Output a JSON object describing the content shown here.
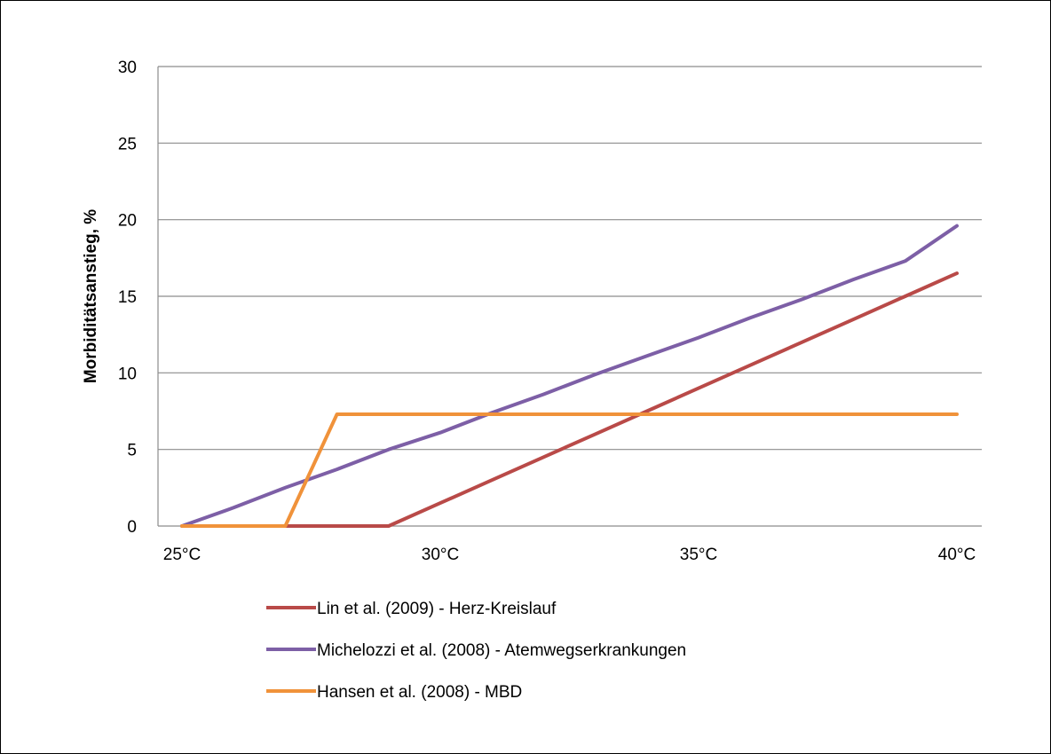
{
  "chart_data": {
    "type": "line",
    "title": "",
    "xlabel": "",
    "ylabel": "Morbiditätsanstieg, %",
    "x": [
      25,
      26,
      27,
      28,
      29,
      30,
      31,
      32,
      33,
      34,
      35,
      36,
      37,
      38,
      39,
      40
    ],
    "x_tick_values": [
      25,
      30,
      35,
      40
    ],
    "x_tick_labels": [
      "25°C",
      "30°C",
      "35°C",
      "40°C"
    ],
    "xlim": [
      25,
      40
    ],
    "ylim": [
      0,
      30
    ],
    "y_ticks": [
      0,
      5,
      10,
      15,
      20,
      25,
      30
    ],
    "y_tick_labels": [
      "0",
      "5",
      "10",
      "15",
      "20",
      "25",
      "30"
    ],
    "grid": "horizontal",
    "legend_position": "bottom",
    "series": [
      {
        "name": "Lin et al. (2009) - Herz-Kreislauf",
        "color": "#b94a48",
        "values": [
          0,
          0,
          0,
          0,
          0,
          1.5,
          3.0,
          4.5,
          6.0,
          7.5,
          9.0,
          10.5,
          12.0,
          13.5,
          15.0,
          16.5
        ]
      },
      {
        "name": "Michelozzi et al. (2008) - Atemwegserkrankungen",
        "color": "#7d5fa6",
        "values": [
          0,
          1.2,
          2.5,
          3.7,
          5.0,
          6.1,
          7.4,
          8.6,
          9.9,
          11.1,
          12.3,
          13.6,
          14.8,
          16.1,
          17.3,
          19.6
        ]
      },
      {
        "name": "Hansen et al. (2008) - MBD",
        "color": "#f0923a",
        "values": [
          0,
          0,
          0,
          7.3,
          7.3,
          7.3,
          7.3,
          7.3,
          7.3,
          7.3,
          7.3,
          7.3,
          7.3,
          7.3,
          7.3,
          7.3
        ]
      }
    ]
  }
}
